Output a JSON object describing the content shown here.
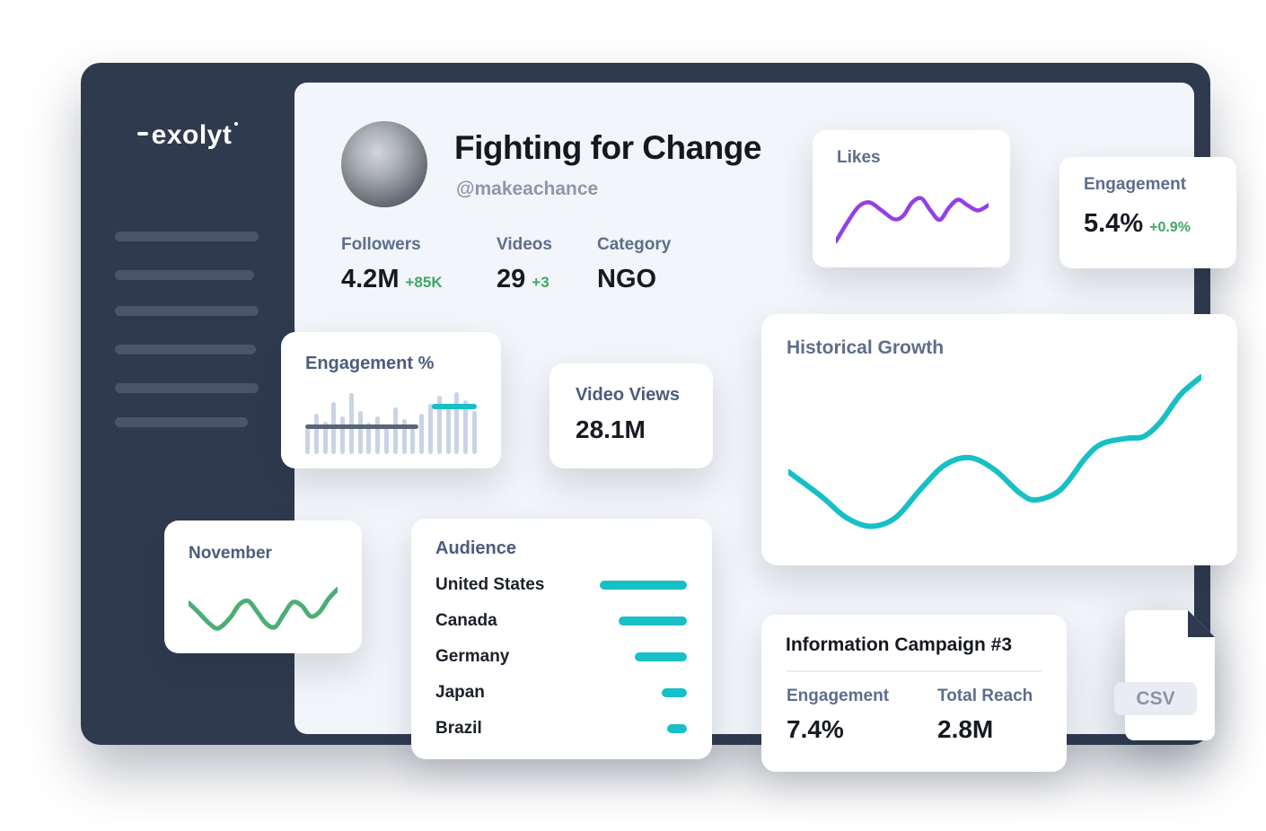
{
  "colors": {
    "positive": "#3fa766",
    "teal": "#17bfc6",
    "purple": "#9340e6",
    "green_line": "#4cae74",
    "dark_text": "#171a22",
    "slate_label": "#5e6d8c",
    "sidebar_bg": "#2f3a4e"
  },
  "sidebar": {
    "logo_text": "exolyt"
  },
  "profile": {
    "title": "Fighting for Change",
    "handle": "@makeachance",
    "stats": [
      {
        "label": "Followers",
        "value": "4.2M",
        "delta": "+85K"
      },
      {
        "label": "Videos",
        "value": "29",
        "delta": "+3"
      },
      {
        "label": "Category",
        "value": "NGO",
        "delta": ""
      }
    ]
  },
  "cards": {
    "likes": {
      "title": "Likes",
      "color": "#9340e6",
      "stroke": 4.5,
      "points": [
        [
          0,
          88
        ],
        [
          8,
          58
        ],
        [
          15,
          36
        ],
        [
          22,
          30
        ],
        [
          30,
          42
        ],
        [
          38,
          55
        ],
        [
          44,
          50
        ],
        [
          50,
          30
        ],
        [
          56,
          24
        ],
        [
          62,
          42
        ],
        [
          68,
          56
        ],
        [
          74,
          38
        ],
        [
          80,
          26
        ],
        [
          86,
          34
        ],
        [
          93,
          42
        ],
        [
          100,
          34
        ]
      ]
    },
    "engagement": {
      "title": "Engagement",
      "value": "5.4%",
      "delta": "+0.9%"
    },
    "engagement_pct": {
      "title": "Engagement %",
      "bar_color": "#c8d4e6",
      "avg_line_color": "#5a6479",
      "highlight_line_color": "#17bfc6",
      "bars": [
        40,
        62,
        50,
        80,
        58,
        95,
        66,
        48,
        58,
        42,
        72,
        54,
        40,
        62,
        78,
        90,
        72,
        96,
        84,
        66
      ]
    },
    "video_views": {
      "title": "Video Views",
      "value": "28.1M"
    },
    "historical_growth": {
      "title": "Historical Growth",
      "color": "#17bfc6",
      "stroke": 6,
      "points": [
        [
          0,
          58
        ],
        [
          8,
          72
        ],
        [
          14,
          84
        ],
        [
          20,
          89
        ],
        [
          26,
          84
        ],
        [
          32,
          68
        ],
        [
          38,
          54
        ],
        [
          44,
          50
        ],
        [
          50,
          57
        ],
        [
          56,
          70
        ],
        [
          60,
          74
        ],
        [
          66,
          68
        ],
        [
          72,
          50
        ],
        [
          76,
          42
        ],
        [
          82,
          39
        ],
        [
          86,
          38
        ],
        [
          90,
          30
        ],
        [
          95,
          14
        ],
        [
          100,
          4
        ]
      ]
    },
    "november": {
      "title": "November",
      "color": "#4cae74",
      "stroke": 5,
      "points": [
        [
          0,
          45
        ],
        [
          7,
          62
        ],
        [
          14,
          80
        ],
        [
          20,
          88
        ],
        [
          28,
          70
        ],
        [
          34,
          48
        ],
        [
          40,
          42
        ],
        [
          46,
          60
        ],
        [
          52,
          80
        ],
        [
          58,
          86
        ],
        [
          64,
          64
        ],
        [
          70,
          44
        ],
        [
          76,
          50
        ],
        [
          82,
          68
        ],
        [
          88,
          60
        ],
        [
          94,
          38
        ],
        [
          100,
          22
        ]
      ]
    },
    "audience": {
      "title": "Audience",
      "bar_color": "#17bfc6",
      "rows": [
        {
          "country": "United States",
          "bar": 97
        },
        {
          "country": "Canada",
          "bar": 76
        },
        {
          "country": "Germany",
          "bar": 58
        },
        {
          "country": "Japan",
          "bar": 28
        },
        {
          "country": "Brazil",
          "bar": 22
        }
      ]
    },
    "campaign": {
      "title": "Information Campaign #3",
      "metrics": [
        {
          "label": "Engagement",
          "value": "7.4%"
        },
        {
          "label": "Total Reach",
          "value": "2.8M"
        }
      ]
    },
    "csv": {
      "label": "CSV"
    }
  }
}
